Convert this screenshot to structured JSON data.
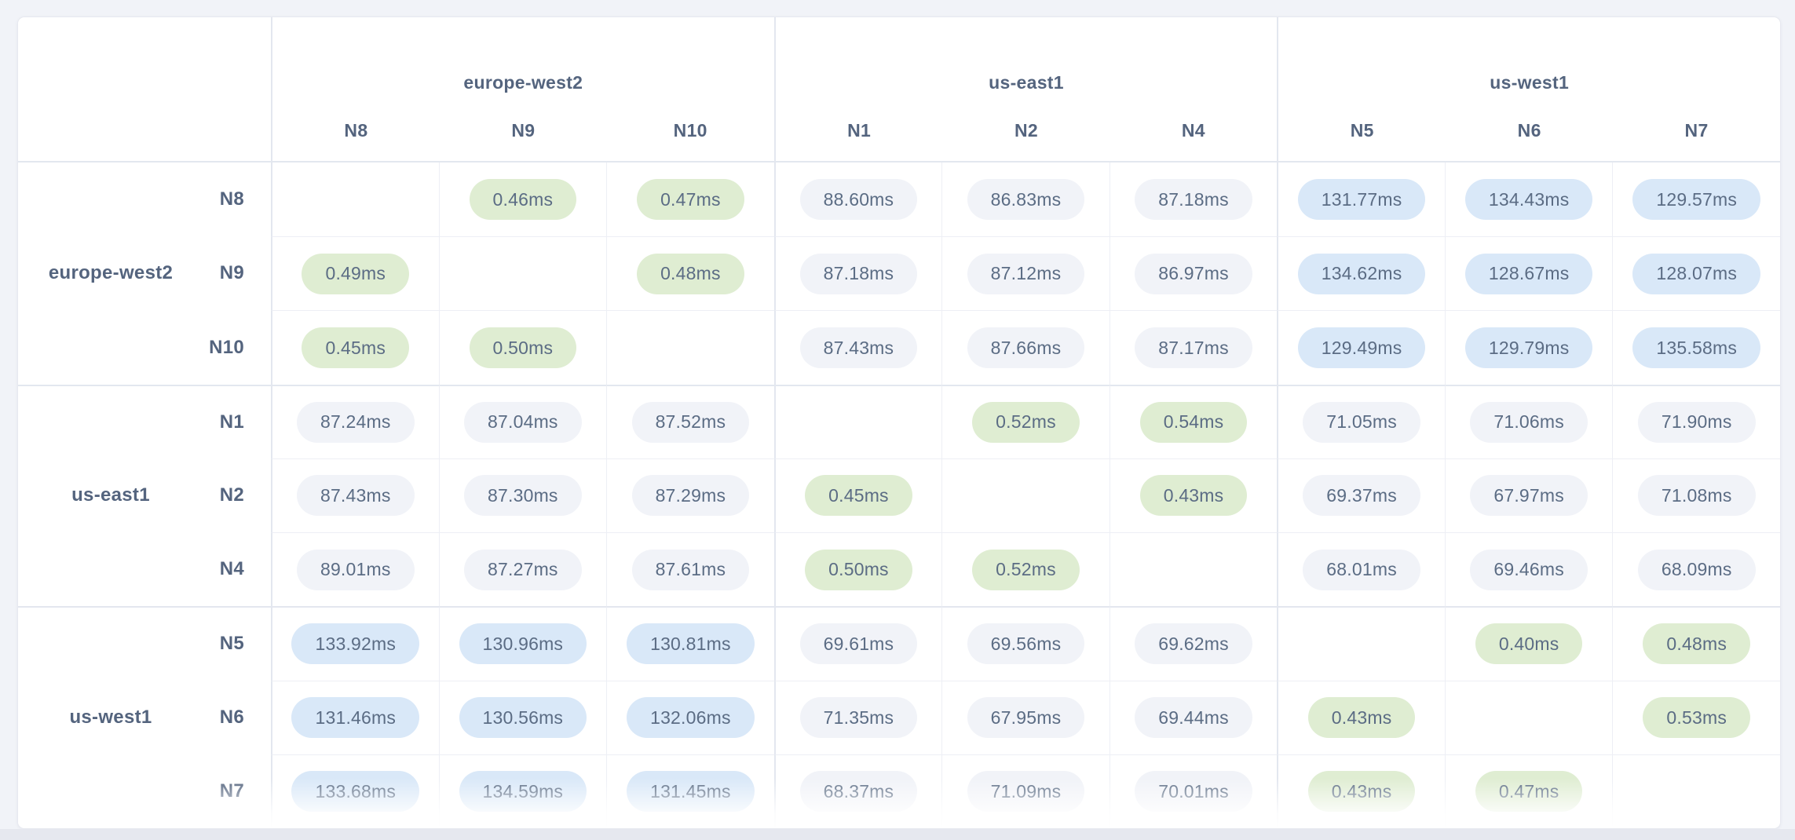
{
  "colors": {
    "page_bg": "#f1f3f8",
    "card_bg": "#ffffff",
    "border_strong": "#e3e7ef",
    "border_light": "#edeff5",
    "pill_low_bg": "#dfedd2",
    "pill_mid_bg": "#f1f3f8",
    "pill_high_bg": "#d9e8f8",
    "text_slate": "#5b6c84",
    "text_header": "#54647e"
  },
  "matrix": {
    "unit": "ms",
    "latency_tiers": {
      "low_max_ms": 1,
      "mid_max_ms": 100
    },
    "column_groups": [
      {
        "region": "europe-west2",
        "nodes": [
          "N8",
          "N9",
          "N10"
        ]
      },
      {
        "region": "us-east1",
        "nodes": [
          "N1",
          "N2",
          "N4"
        ]
      },
      {
        "region": "us-west1",
        "nodes": [
          "N5",
          "N6",
          "N7"
        ]
      }
    ],
    "row_groups": [
      {
        "region": "europe-west2",
        "rows": [
          {
            "node": "N8",
            "cells": [
              "",
              "0.46ms",
              "0.47ms",
              "88.60ms",
              "86.83ms",
              "87.18ms",
              "131.77ms",
              "134.43ms",
              "129.57ms"
            ]
          },
          {
            "node": "N9",
            "cells": [
              "0.49ms",
              "",
              "0.48ms",
              "87.18ms",
              "87.12ms",
              "86.97ms",
              "134.62ms",
              "128.67ms",
              "128.07ms"
            ]
          },
          {
            "node": "N10",
            "cells": [
              "0.45ms",
              "0.50ms",
              "",
              "87.43ms",
              "87.66ms",
              "87.17ms",
              "129.49ms",
              "129.79ms",
              "135.58ms"
            ]
          }
        ]
      },
      {
        "region": "us-east1",
        "rows": [
          {
            "node": "N1",
            "cells": [
              "87.24ms",
              "87.04ms",
              "87.52ms",
              "",
              "0.52ms",
              "0.54ms",
              "71.05ms",
              "71.06ms",
              "71.90ms"
            ]
          },
          {
            "node": "N2",
            "cells": [
              "87.43ms",
              "87.30ms",
              "87.29ms",
              "0.45ms",
              "",
              "0.43ms",
              "69.37ms",
              "67.97ms",
              "71.08ms"
            ]
          },
          {
            "node": "N4",
            "cells": [
              "89.01ms",
              "87.27ms",
              "87.61ms",
              "0.50ms",
              "0.52ms",
              "",
              "68.01ms",
              "69.46ms",
              "68.09ms"
            ]
          }
        ]
      },
      {
        "region": "us-west1",
        "rows": [
          {
            "node": "N5",
            "cells": [
              "133.92ms",
              "130.96ms",
              "130.81ms",
              "69.61ms",
              "69.56ms",
              "69.62ms",
              "",
              "0.40ms",
              "0.48ms"
            ]
          },
          {
            "node": "N6",
            "cells": [
              "131.46ms",
              "130.56ms",
              "132.06ms",
              "71.35ms",
              "67.95ms",
              "69.44ms",
              "0.43ms",
              "",
              "0.53ms"
            ]
          },
          {
            "node": "N7",
            "cells": [
              "133.68ms",
              "134.59ms",
              "131.45ms",
              "68.37ms",
              "71.09ms",
              "70.01ms",
              "0.43ms",
              "0.47ms",
              ""
            ]
          }
        ]
      }
    ]
  }
}
